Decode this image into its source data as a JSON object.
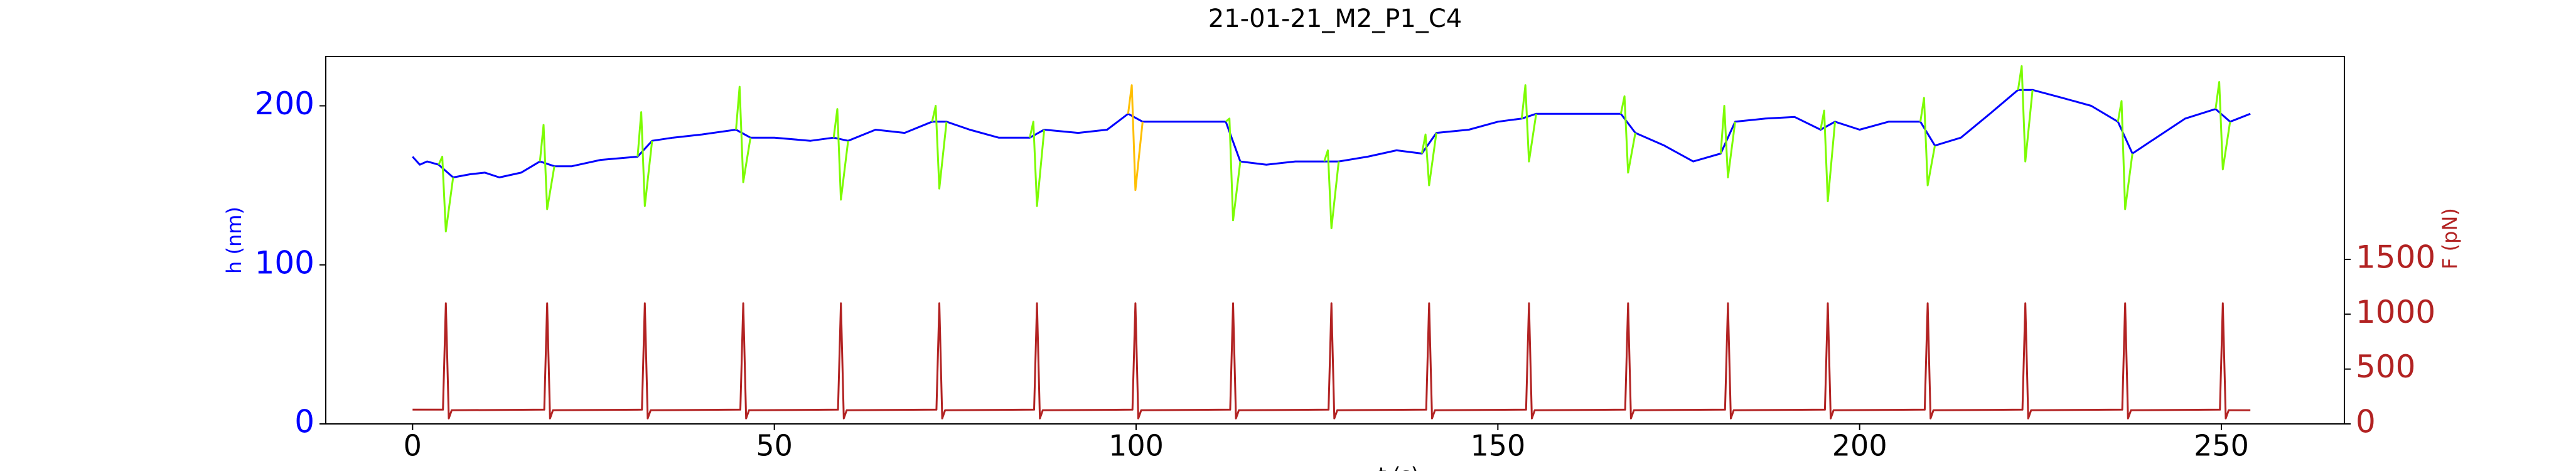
{
  "chart_data": {
    "type": "line",
    "title": "21-01-21_M2_P1_C4",
    "xlabel": "t (s)",
    "ylabel": "h (nm)",
    "y2label": "F (pN)",
    "xlim": [
      -12,
      267
    ],
    "xticks": [
      0,
      50,
      100,
      150,
      200,
      250
    ],
    "ylim": [
      0,
      231
    ],
    "yticks": [
      0,
      100,
      200
    ],
    "y2lim": [
      0,
      3350
    ],
    "y2ticks": [
      0,
      500,
      1000,
      1500
    ],
    "ycolor": "#0000ff",
    "y2color": "#b22222",
    "series": [
      {
        "color": "#0000ff",
        "axis": "y",
        "x": [
          0,
          1,
          2,
          3.6,
          5.6,
          8,
          10,
          12,
          15,
          17.6,
          19.6,
          22,
          26,
          31.1,
          33.1,
          36,
          40,
          44.7,
          46.7,
          50,
          55,
          58.2,
          60.2,
          64,
          68,
          71.8,
          73.8,
          77,
          81,
          85.3,
          87.3,
          92,
          96,
          98.9,
          100.9,
          106,
          112.4,
          114.4,
          118,
          122,
          126,
          128,
          132,
          136,
          139.5,
          141.5,
          146,
          150,
          153.3,
          155.3,
          160,
          164,
          167,
          169,
          173,
          177,
          180.8,
          182.8,
          187,
          191,
          194.6,
          196.6,
          200,
          204,
          208.4,
          210.4,
          214,
          218,
          221.9,
          223.9,
          228,
          232,
          235.7,
          237.7,
          241,
          245,
          249.2,
          251.2,
          254
        ],
        "values": [
          168,
          163,
          165,
          163,
          155,
          157,
          158,
          155,
          158,
          165,
          162,
          162,
          166,
          168,
          178,
          180,
          182,
          185,
          180,
          180,
          178,
          180,
          178,
          185,
          183,
          190,
          190,
          185,
          180,
          180,
          185,
          183,
          185,
          195,
          190,
          190,
          190,
          165,
          163,
          165,
          165,
          165,
          168,
          172,
          170,
          183,
          185,
          190,
          192,
          195,
          195,
          195,
          195,
          183,
          175,
          165,
          170,
          190,
          192,
          193,
          185,
          190,
          185,
          190,
          190,
          175,
          180,
          195,
          210,
          210,
          205,
          200,
          190,
          170,
          180,
          192,
          198,
          190,
          195
        ]
      },
      {
        "color": "#7cfc00",
        "axis": "y",
        "x": [
          3.6,
          4.1,
          4.6,
          5.6,
          null,
          17.6,
          18.1,
          18.6,
          19.6,
          null,
          31.1,
          31.6,
          32.1,
          33.1,
          null,
          44.7,
          45.2,
          45.7,
          46.7,
          null,
          58.2,
          58.7,
          59.2,
          60.2,
          null,
          71.8,
          72.3,
          72.8,
          73.8,
          null,
          85.3,
          85.8,
          86.3,
          87.3,
          null,
          112.4,
          112.9,
          113.4,
          114.4,
          null,
          126,
          126.5,
          127,
          128,
          null,
          139.5,
          140,
          140.5,
          141.5,
          null,
          153.3,
          153.8,
          154.3,
          155.3,
          null,
          167,
          167.5,
          168,
          169,
          null,
          180.8,
          181.3,
          181.8,
          182.8,
          null,
          194.6,
          195.1,
          195.6,
          196.6,
          null,
          208.4,
          208.9,
          209.4,
          210.4,
          null,
          221.9,
          222.4,
          222.9,
          223.9,
          null,
          235.7,
          236.2,
          236.7,
          237.7,
          null,
          249.2,
          249.7,
          250.2,
          251.2
        ],
        "values": [
          163,
          168,
          121,
          155,
          null,
          165,
          188,
          135,
          162,
          null,
          168,
          196,
          137,
          178,
          null,
          185,
          212,
          152,
          180,
          null,
          180,
          198,
          141,
          178,
          null,
          190,
          200,
          148,
          190,
          null,
          180,
          190,
          137,
          185,
          null,
          190,
          192,
          128,
          165,
          null,
          165,
          172,
          123,
          165,
          null,
          170,
          182,
          150,
          183,
          null,
          192,
          213,
          165,
          195,
          null,
          195,
          206,
          158,
          183,
          null,
          170,
          200,
          155,
          190,
          null,
          185,
          197,
          140,
          190,
          null,
          190,
          205,
          150,
          175,
          null,
          210,
          225,
          165,
          210,
          null,
          190,
          203,
          135,
          170,
          null,
          198,
          215,
          160,
          190
        ]
      },
      {
        "color": "#ffbf00",
        "axis": "y",
        "x": [
          98.9,
          99.4,
          99.9,
          100.9
        ],
        "values": [
          195,
          213,
          147,
          190
        ]
      },
      {
        "color": "#b22222",
        "axis": "y2",
        "x": [
          0,
          4.2,
          4.6,
          5.0,
          5.4,
          18.2,
          18.6,
          19.0,
          19.4,
          31.7,
          32.1,
          32.5,
          32.9,
          45.3,
          45.7,
          46.1,
          46.5,
          58.8,
          59.2,
          59.6,
          60.0,
          72.4,
          72.8,
          73.2,
          73.6,
          85.9,
          86.3,
          86.7,
          87.1,
          99.5,
          99.9,
          100.3,
          100.7,
          113.0,
          113.4,
          113.8,
          114.2,
          126.6,
          127.0,
          127.4,
          127.8,
          140.1,
          140.5,
          140.9,
          141.3,
          153.9,
          154.3,
          154.7,
          155.1,
          167.6,
          168.0,
          168.4,
          168.8,
          181.4,
          181.8,
          182.2,
          182.6,
          195.2,
          195.6,
          196.0,
          196.4,
          209.0,
          209.4,
          209.8,
          210.2,
          222.5,
          222.9,
          223.3,
          223.7,
          236.3,
          236.7,
          237.1,
          237.5,
          249.8,
          250.2,
          250.6,
          251.0,
          254
        ],
        "values": [
          130,
          130,
          1100,
          50,
          125,
          130,
          1100,
          50,
          125,
          130,
          1100,
          50,
          125,
          130,
          1100,
          50,
          125,
          130,
          1100,
          50,
          125,
          130,
          1100,
          50,
          125,
          130,
          1100,
          50,
          125,
          130,
          1100,
          50,
          125,
          130,
          1100,
          50,
          125,
          130,
          1100,
          50,
          125,
          130,
          1100,
          50,
          125,
          130,
          1100,
          50,
          125,
          130,
          1100,
          50,
          125,
          130,
          1100,
          50,
          125,
          130,
          1100,
          50,
          125,
          130,
          1100,
          50,
          125,
          130,
          1100,
          50,
          125,
          130,
          1100,
          50,
          125,
          130,
          1100,
          50,
          125,
          125
        ]
      }
    ]
  }
}
